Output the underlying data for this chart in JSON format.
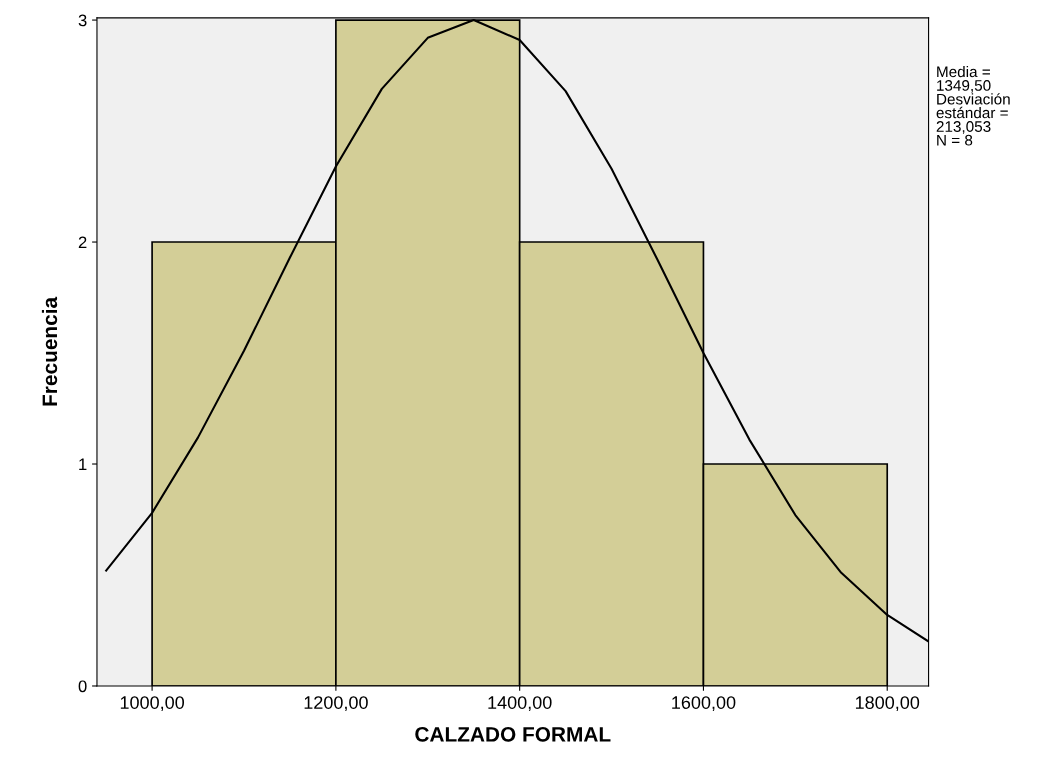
{
  "chart_data": {
    "type": "histogram",
    "xlabel": "CALZADO FORMAL",
    "ylabel": "Frecuencia",
    "bins": [
      1000,
      1200,
      1400,
      1600,
      1800
    ],
    "values": [
      2,
      3,
      2,
      1
    ],
    "color": "#d3ce97",
    "series": [
      {
        "type": "line",
        "color": "#000000",
        "x": [
          950,
          1000,
          1050,
          1100,
          1150,
          1200,
          1250,
          1300,
          1350,
          1400,
          1450,
          1500,
          1550,
          1600,
          1650,
          1700,
          1750,
          1800,
          1845
        ],
        "values": [
          0.52,
          0.78,
          1.12,
          1.51,
          1.93,
          2.34,
          2.69,
          2.92,
          3.0,
          2.91,
          2.68,
          2.33,
          1.92,
          1.5,
          1.11,
          0.77,
          0.51,
          0.32,
          0.2
        ]
      }
    ],
    "xlim": [
      940,
      1845
    ],
    "ylim": [
      0,
      3.01
    ],
    "xticks": [
      {
        "value": 1000,
        "label": "1000,00"
      },
      {
        "value": 1200,
        "label": "1200,00"
      },
      {
        "value": 1400,
        "label": "1400,00"
      },
      {
        "value": 1600,
        "label": "1600,00"
      },
      {
        "value": 1800,
        "label": "1800,00"
      }
    ],
    "yticks": [
      0,
      1,
      2,
      3
    ],
    "annotations": [
      "Media =\n1349,50\nDesviación\nestándar =\n213,053\nN = 8"
    ],
    "grid": false,
    "legend": false
  }
}
